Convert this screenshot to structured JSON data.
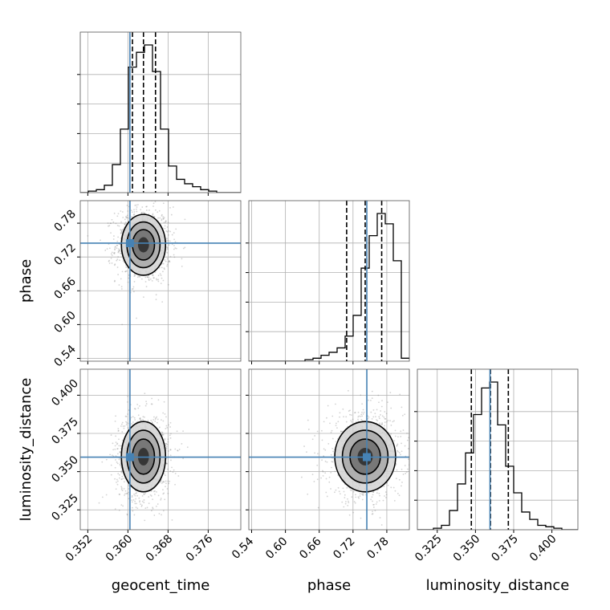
{
  "chart_data": {
    "type": "corner",
    "parameters": [
      "geocent_time",
      "phase",
      "luminosity_distance"
    ],
    "axis_labels": {
      "geocent_time": "geocent_time",
      "phase": "phase",
      "luminosity_distance": "luminosity_distance"
    },
    "ranges": {
      "geocent_time": [
        0.3505,
        0.3825
      ],
      "phase": [
        0.535,
        0.82
      ],
      "luminosity_distance": [
        0.312,
        0.417
      ]
    },
    "ticks": {
      "geocent_time": [
        0.352,
        0.36,
        0.368,
        0.376
      ],
      "phase": [
        0.54,
        0.6,
        0.66,
        0.72,
        0.78
      ],
      "luminosity_distance": [
        0.325,
        0.35,
        0.375,
        0.4
      ]
    },
    "tick_labels": {
      "geocent_time": [
        "0.352",
        "0.360",
        "0.368",
        "0.376"
      ],
      "phase": [
        "0.54",
        "0.60",
        "0.66",
        "0.72",
        "0.78"
      ],
      "luminosity_distance": [
        "0.325",
        "0.350",
        "0.375",
        "0.400"
      ]
    },
    "injection": {
      "geocent_time": 0.3604,
      "phase": 0.7445,
      "luminosity_distance": 0.3595
    },
    "quantiles": {
      "geocent_time": [
        0.3609,
        0.3631,
        0.3655
      ],
      "phase": [
        0.7087,
        0.7416,
        0.7709
      ],
      "luminosity_distance": [
        0.3473,
        0.3598,
        0.3715
      ]
    },
    "histograms": {
      "geocent_time": {
        "edges_range": [
          0.3505,
          0.3825
        ],
        "counts": [
          0,
          1,
          2,
          5,
          19,
          43,
          85,
          95,
          100,
          82,
          43,
          18,
          9,
          6,
          4,
          2,
          1,
          0,
          0,
          0
        ]
      },
      "phase": {
        "edges_range": [
          0.535,
          0.82
        ],
        "counts": [
          0,
          0,
          0,
          0,
          0,
          0,
          0,
          1,
          2,
          4,
          6,
          9,
          17,
          31,
          63,
          85,
          100,
          93,
          68,
          2
        ]
      },
      "luminosity_distance": {
        "edges_range": [
          0.312,
          0.417
        ],
        "counts": [
          0,
          0,
          1,
          3,
          13,
          31,
          52,
          78,
          96,
          100,
          71,
          43,
          25,
          12,
          7,
          3,
          2,
          1,
          0,
          0
        ]
      }
    },
    "joint_posteriors": [
      {
        "x": "geocent_time",
        "y": "phase",
        "center": [
          0.3631,
          0.7416
        ],
        "sigma": [
          0.0022,
          0.027
        ],
        "contour_levels_sigma": [
          0.5,
          1.0,
          1.5,
          2.0
        ]
      },
      {
        "x": "geocent_time",
        "y": "luminosity_distance",
        "center": [
          0.3631,
          0.3598
        ],
        "sigma": [
          0.0022,
          0.0115
        ],
        "contour_levels_sigma": [
          0.5,
          1.0,
          1.5,
          2.0
        ]
      },
      {
        "x": "phase",
        "y": "luminosity_distance",
        "center": [
          0.7416,
          0.3598
        ],
        "sigma": [
          0.027,
          0.0115
        ],
        "contour_levels_sigma": [
          0.5,
          1.0,
          1.5,
          2.0
        ]
      }
    ],
    "colors": {
      "injection": "#4682b4",
      "histogram": "#000000",
      "contour": "#000000",
      "samples": "#808080",
      "grid": "#b0b0b0"
    },
    "grid": true
  }
}
